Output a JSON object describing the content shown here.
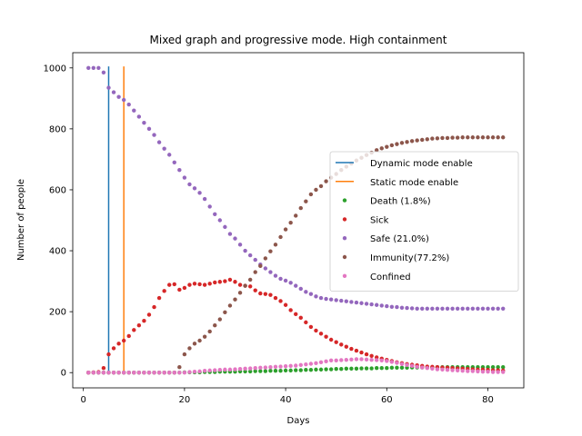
{
  "chart_data": {
    "type": "scatter",
    "title": "Mixed graph and progressive mode. High containment",
    "xlabel": "Days",
    "ylabel": "Number of people",
    "xlim": [
      -2.1,
      87.1
    ],
    "ylim": [
      -50,
      1050
    ],
    "xticks": [
      0,
      20,
      40,
      60,
      80
    ],
    "yticks": [
      0,
      200,
      400,
      600,
      800,
      1000
    ],
    "grid": false,
    "legend_position": "center-right",
    "days": [
      1,
      2,
      3,
      4,
      5,
      6,
      7,
      8,
      9,
      10,
      11,
      12,
      13,
      14,
      15,
      16,
      17,
      18,
      19,
      20,
      21,
      22,
      23,
      24,
      25,
      26,
      27,
      28,
      29,
      30,
      31,
      32,
      33,
      34,
      35,
      36,
      37,
      38,
      39,
      40,
      41,
      42,
      43,
      44,
      45,
      46,
      47,
      48,
      49,
      50,
      51,
      52,
      53,
      54,
      55,
      56,
      57,
      58,
      59,
      60,
      61,
      62,
      63,
      64,
      65,
      66,
      67,
      68,
      69,
      70,
      71,
      72,
      73,
      74,
      75,
      76,
      77,
      78,
      79,
      80,
      81,
      82,
      83
    ],
    "vlines": [
      {
        "name": "Dynamic mode enable",
        "x": 5,
        "ymin": 0,
        "ymax": 1005,
        "color": "#1f77b4"
      },
      {
        "name": "Static mode enable",
        "x": 8,
        "ymin": 0,
        "ymax": 1005,
        "color": "#ff7f0e"
      }
    ],
    "series": [
      {
        "name": "Death (1.8%)",
        "color": "#2ca02c",
        "values": [
          0,
          0,
          0,
          0,
          0,
          0,
          0,
          0,
          0,
          0,
          0,
          0,
          0,
          0,
          0,
          0,
          0,
          0,
          0,
          1,
          1,
          1,
          1,
          2,
          2,
          2,
          3,
          3,
          3,
          3,
          4,
          4,
          4,
          5,
          5,
          5,
          6,
          6,
          6,
          7,
          7,
          8,
          8,
          9,
          9,
          10,
          10,
          11,
          11,
          12,
          12,
          13,
          13,
          13,
          14,
          14,
          14,
          15,
          15,
          15,
          16,
          16,
          16,
          16,
          17,
          17,
          17,
          17,
          17,
          18,
          18,
          18,
          18,
          18,
          18,
          18,
          18,
          18,
          18,
          18,
          18,
          18,
          18
        ]
      },
      {
        "name": "Sick",
        "color": "#d62728",
        "values": [
          0,
          1,
          2,
          15,
          60,
          80,
          95,
          105,
          120,
          140,
          155,
          170,
          190,
          215,
          245,
          268,
          288,
          290,
          272,
          278,
          288,
          292,
          290,
          288,
          292,
          296,
          298,
          300,
          305,
          298,
          288,
          285,
          283,
          270,
          260,
          258,
          255,
          245,
          235,
          222,
          205,
          192,
          180,
          165,
          150,
          138,
          128,
          118,
          108,
          100,
          92,
          85,
          78,
          72,
          66,
          60,
          55,
          50,
          46,
          42,
          38,
          34,
          31,
          28,
          26,
          24,
          22,
          20,
          19,
          18,
          17,
          16,
          15,
          14,
          13,
          12,
          11,
          10,
          10,
          9,
          8,
          8,
          7
        ]
      },
      {
        "name": "Safe (21.0%)",
        "color": "#9467bd",
        "values": [
          1000,
          1000,
          1000,
          985,
          935,
          920,
          905,
          895,
          880,
          860,
          840,
          820,
          800,
          780,
          756,
          735,
          715,
          690,
          665,
          640,
          618,
          605,
          590,
          570,
          545,
          520,
          500,
          478,
          455,
          440,
          420,
          400,
          385,
          370,
          355,
          342,
          330,
          318,
          308,
          302,
          295,
          285,
          275,
          265,
          258,
          250,
          245,
          242,
          240,
          238,
          236,
          234,
          232,
          230,
          228,
          226,
          224,
          222,
          220,
          218,
          216,
          215,
          213,
          212,
          211,
          210,
          210,
          210,
          210,
          210,
          210,
          210,
          210,
          210,
          210,
          210,
          210,
          210,
          210,
          210,
          210,
          210,
          210
        ]
      },
      {
        "name": "Immunity(77.2%)",
        "color": "#8c564b",
        "values": [
          0,
          0,
          0,
          0,
          0,
          0,
          0,
          0,
          0,
          0,
          0,
          0,
          0,
          0,
          0,
          0,
          0,
          0,
          18,
          60,
          80,
          95,
          105,
          118,
          135,
          155,
          175,
          198,
          220,
          240,
          262,
          285,
          305,
          330,
          350,
          375,
          398,
          420,
          445,
          470,
          492,
          515,
          540,
          562,
          585,
          600,
          612,
          628,
          640,
          652,
          665,
          676,
          686,
          696,
          705,
          714,
          722,
          730,
          736,
          741,
          746,
          750,
          754,
          757,
          760,
          762,
          764,
          766,
          768,
          769,
          770,
          770,
          771,
          771,
          772,
          772,
          772,
          772,
          772,
          772,
          772,
          772,
          772
        ]
      },
      {
        "name": "Confined",
        "color": "#e377c2",
        "values": [
          0,
          0,
          0,
          0,
          0,
          0,
          0,
          0,
          0,
          0,
          0,
          0,
          0,
          0,
          0,
          0,
          0,
          0,
          0,
          0,
          2,
          3,
          4,
          6,
          7,
          8,
          9,
          10,
          10,
          11,
          12,
          13,
          14,
          15,
          16,
          17,
          18,
          19,
          20,
          21,
          22,
          23,
          25,
          27,
          29,
          31,
          34,
          37,
          40,
          40,
          41,
          42,
          43,
          44,
          44,
          43,
          42,
          41,
          40,
          38,
          35,
          32,
          28,
          25,
          22,
          19,
          17,
          15,
          13,
          11,
          10,
          9,
          8,
          7,
          6,
          5,
          5,
          4,
          3,
          3,
          2,
          2,
          2
        ]
      }
    ]
  }
}
